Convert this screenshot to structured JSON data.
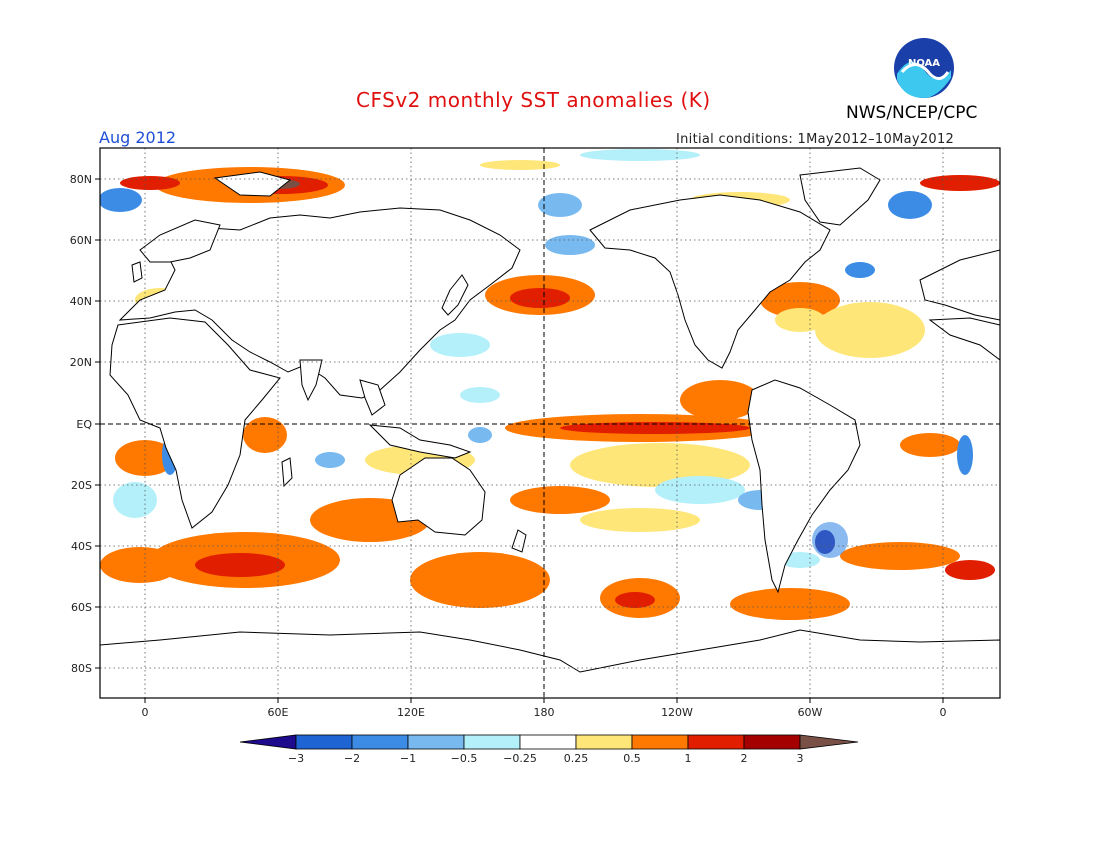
{
  "header": {
    "title": "CFSv2 monthly SST anomalies (K)",
    "org": "NWS/NCEP/CPC",
    "logo_text": "NOAA",
    "month": "Aug 2012",
    "initial_conditions": "Initial conditions: 1May2012–10May2012"
  },
  "map": {
    "lat_labels": [
      "80N",
      "60N",
      "40N",
      "20N",
      "EQ",
      "20S",
      "40S",
      "60S",
      "80S"
    ],
    "lon_labels": [
      "0",
      "60E",
      "120E",
      "180",
      "120W",
      "60W",
      "0"
    ],
    "lon_range": [
      -20,
      380
    ],
    "lat_range": [
      -90,
      90
    ]
  },
  "colorbar": {
    "tick_labels": [
      "−3",
      "−2",
      "−1",
      "−0.5",
      "−0.25",
      "0.25",
      "0.5",
      "1",
      "2",
      "3"
    ],
    "colors": [
      "#1e0a8c",
      "#1e64d2",
      "#3c8ce6",
      "#78b9f0",
      "#b4f0fa",
      "#ffffff",
      "#ffe678",
      "#ff7800",
      "#e11e00",
      "#a50000",
      "#785046"
    ]
  },
  "colors": {
    "title": "#e01010",
    "month": "#1f4fd6",
    "noaa_blue": "#1a3fa8",
    "noaa_cyan": "#3cc8ef"
  }
}
